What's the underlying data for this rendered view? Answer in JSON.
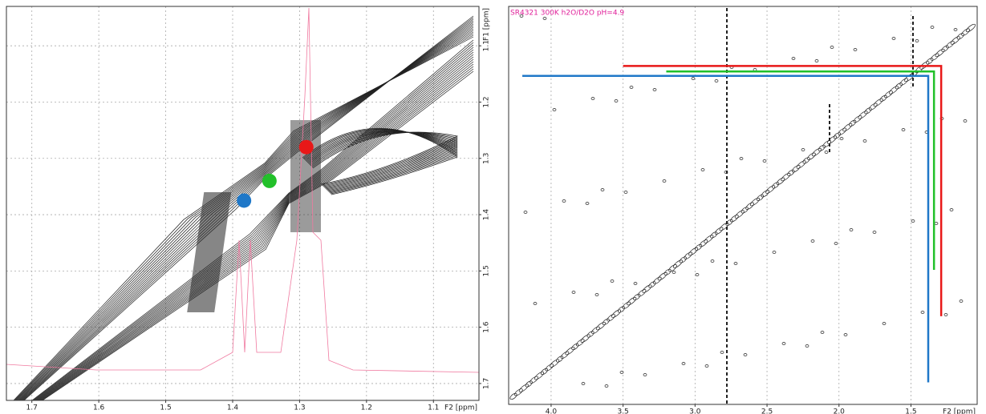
{
  "chart_data": [
    {
      "type": "scatter",
      "x_label": "F2 [ppm]",
      "y_label": "F1 [ppm]",
      "xlim": [
        1.738,
        1.032
      ],
      "ylim": [
        1.03,
        1.73
      ],
      "xticks": [
        1.7,
        1.6,
        1.5,
        1.4,
        1.3,
        1.2,
        1.1
      ],
      "yticks": [
        1.1,
        1.2,
        1.3,
        1.4,
        1.5,
        1.6,
        1.7
      ],
      "grid": true,
      "x": [
        1.383,
        1.345,
        1.29
      ],
      "values": [
        1.375,
        1.34,
        1.28
      ],
      "colors": [
        "#1f78c8",
        "#22c02a",
        "#e81818"
      ]
    },
    {
      "type": "line",
      "title": "SR4321  300K  h2O/D2O pH=4.9",
      "title_color": "#e0209a",
      "x_label": "F2 [ppm]",
      "xlim": [
        4.295,
        1.04
      ],
      "ylim": [
        0.75,
        4.36
      ],
      "xticks": [
        {
          "value": 4,
          "label": "4.0"
        },
        3.5,
        {
          "value": 3,
          "label": "3.0"
        },
        2.5,
        {
          "value": 2,
          "label": "2.0"
        },
        1.5
      ],
      "grid": true,
      "series": [
        {
          "color": "#e81818",
          "x": [
            3.5,
            1.29,
            1.29
          ],
          "values": [
            1.29,
            1.29,
            3.56
          ]
        },
        {
          "color": "#22c02a",
          "x": [
            3.2,
            1.34,
            1.34
          ],
          "values": [
            1.34,
            1.34,
            3.14
          ]
        },
        {
          "color": "#1f78c8",
          "x": [
            4.2,
            1.38,
            1.38
          ],
          "values": [
            1.38,
            1.38,
            4.16
          ]
        }
      ]
    }
  ]
}
